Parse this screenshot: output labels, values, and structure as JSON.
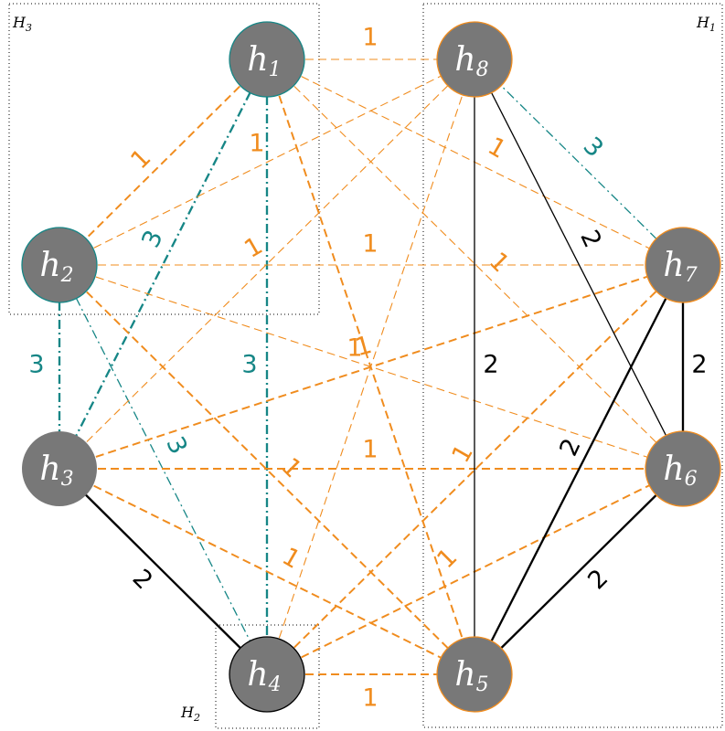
{
  "colors": {
    "orange": "#f08c1e",
    "teal": "#168686",
    "black": "#000000",
    "node_fill": "#787878"
  },
  "groups": [
    {
      "id": "H3",
      "label": "H",
      "sub": "3"
    },
    {
      "id": "H1",
      "label": "H",
      "sub": "1"
    },
    {
      "id": "H2",
      "label": "H",
      "sub": "2"
    }
  ],
  "nodes": [
    {
      "id": "h1",
      "label": "h",
      "sub": "1",
      "group": "H3",
      "border": "teal"
    },
    {
      "id": "h2",
      "label": "h",
      "sub": "2",
      "group": "H3",
      "border": "teal"
    },
    {
      "id": "h3",
      "label": "h",
      "sub": "3",
      "group": "",
      "border": "none"
    },
    {
      "id": "h4",
      "label": "h",
      "sub": "4",
      "group": "H2",
      "border": "black"
    },
    {
      "id": "h5",
      "label": "h",
      "sub": "5",
      "group": "H1",
      "border": "orange"
    },
    {
      "id": "h6",
      "label": "h",
      "sub": "6",
      "group": "H1",
      "border": "orange"
    },
    {
      "id": "h7",
      "label": "h",
      "sub": "7",
      "group": "H1",
      "border": "orange"
    },
    {
      "id": "h8",
      "label": "h",
      "sub": "8",
      "group": "H1",
      "border": "orange"
    }
  ],
  "edges": [
    {
      "from": "h1",
      "to": "h8",
      "weight": "1",
      "color": "orange",
      "style": "dashed"
    },
    {
      "from": "h1",
      "to": "h2",
      "weight": "1",
      "color": "orange",
      "style": "dashed"
    },
    {
      "from": "h1",
      "to": "h3",
      "weight": "3",
      "color": "teal",
      "style": "dashdot"
    },
    {
      "from": "h1",
      "to": "h4",
      "weight": "3",
      "color": "teal",
      "style": "dashdot"
    },
    {
      "from": "h1",
      "to": "h5",
      "weight": "1",
      "color": "orange",
      "style": "dashed"
    },
    {
      "from": "h1",
      "to": "h6",
      "weight": "1",
      "color": "orange",
      "style": "dashed"
    },
    {
      "from": "h1",
      "to": "h7",
      "weight": "1",
      "color": "orange",
      "style": "dashed"
    },
    {
      "from": "h2",
      "to": "h3",
      "weight": "3",
      "color": "teal",
      "style": "dashdot"
    },
    {
      "from": "h2",
      "to": "h4",
      "weight": "3",
      "color": "teal",
      "style": "dashdot"
    },
    {
      "from": "h2",
      "to": "h5",
      "weight": "1",
      "color": "orange",
      "style": "dashed"
    },
    {
      "from": "h2",
      "to": "h6",
      "weight": "1",
      "color": "orange",
      "style": "dashed"
    },
    {
      "from": "h2",
      "to": "h7",
      "weight": "1",
      "color": "orange",
      "style": "dashed"
    },
    {
      "from": "h2",
      "to": "h8",
      "weight": "1",
      "color": "orange",
      "style": "dashed"
    },
    {
      "from": "h3",
      "to": "h4",
      "weight": "2",
      "color": "black",
      "style": "solid"
    },
    {
      "from": "h3",
      "to": "h5",
      "weight": "1",
      "color": "orange",
      "style": "dashed"
    },
    {
      "from": "h3",
      "to": "h6",
      "weight": "1",
      "color": "orange",
      "style": "dashed"
    },
    {
      "from": "h3",
      "to": "h7",
      "weight": "1",
      "color": "orange",
      "style": "dashed"
    },
    {
      "from": "h3",
      "to": "h8",
      "weight": "1",
      "color": "orange",
      "style": "dashed"
    },
    {
      "from": "h4",
      "to": "h5",
      "weight": "1",
      "color": "orange",
      "style": "dashed"
    },
    {
      "from": "h4",
      "to": "h6",
      "weight": "1",
      "color": "orange",
      "style": "dashed"
    },
    {
      "from": "h4",
      "to": "h7",
      "weight": "1",
      "color": "orange",
      "style": "dashed"
    },
    {
      "from": "h4",
      "to": "h8",
      "weight": "1",
      "color": "orange",
      "style": "dashed"
    },
    {
      "from": "h5",
      "to": "h6",
      "weight": "2",
      "color": "black",
      "style": "solid"
    },
    {
      "from": "h5",
      "to": "h7",
      "weight": "2",
      "color": "black",
      "style": "solid"
    },
    {
      "from": "h5",
      "to": "h8",
      "weight": "2",
      "color": "black",
      "style": "solid"
    },
    {
      "from": "h6",
      "to": "h7",
      "weight": "2",
      "color": "black",
      "style": "solid"
    },
    {
      "from": "h6",
      "to": "h8",
      "weight": "2",
      "color": "black",
      "style": "solid"
    },
    {
      "from": "h7",
      "to": "h8",
      "weight": "3",
      "color": "teal",
      "style": "dashdot"
    }
  ]
}
